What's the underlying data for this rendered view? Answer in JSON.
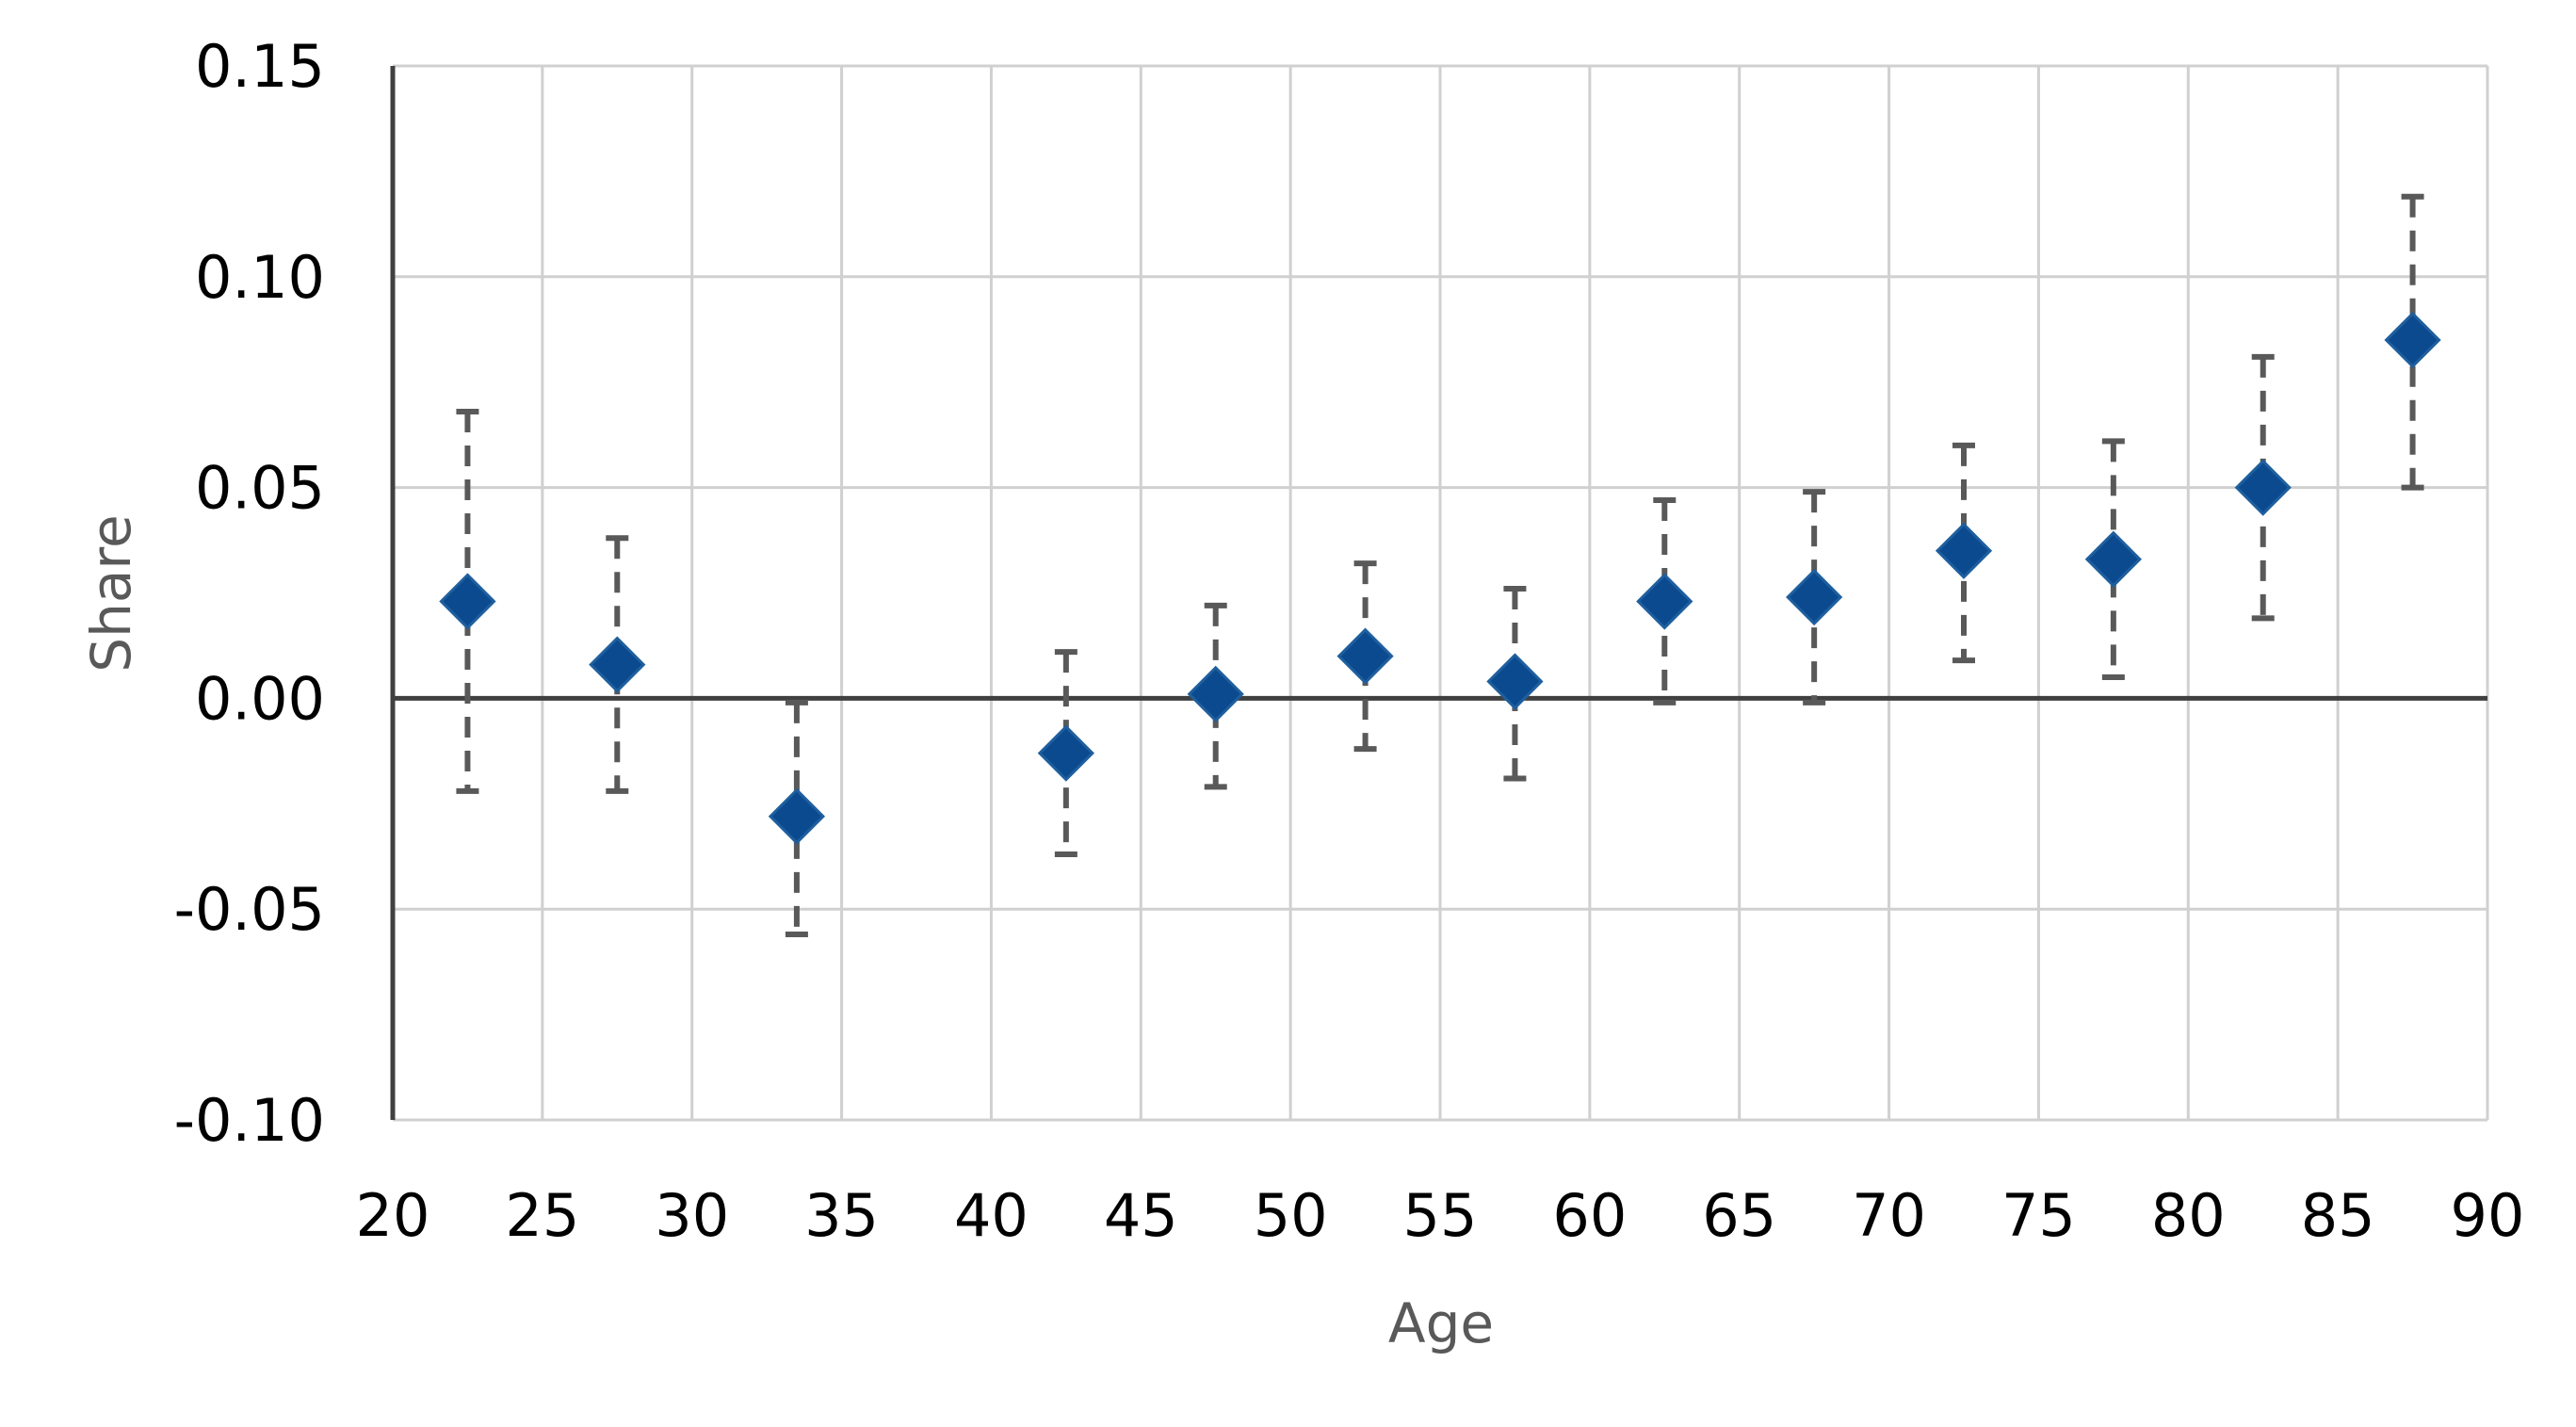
{
  "chart_data": {
    "type": "scatter",
    "title": "",
    "xlabel": "Age",
    "ylabel": "Share",
    "xlim": [
      20,
      90
    ],
    "ylim": [
      -0.1,
      0.15
    ],
    "x_ticks": [
      "20",
      "25",
      "30",
      "35",
      "40",
      "45",
      "50",
      "55",
      "60",
      "65",
      "70",
      "75",
      "80",
      "85",
      "90"
    ],
    "y_ticks": [
      "0.15",
      "0.10",
      "0.05",
      "0.00",
      "-0.05",
      "-0.10"
    ],
    "grid": true,
    "colors": {
      "marker": "#0b4a8f",
      "error_bar": "#595959",
      "grid": "#d0d0d0"
    },
    "series": [
      {
        "points": [
          {
            "x": 22.5,
            "y": 0.023,
            "low": -0.022,
            "high": 0.068
          },
          {
            "x": 27.5,
            "y": 0.008,
            "low": -0.022,
            "high": 0.038
          },
          {
            "x": 33.5,
            "y": -0.028,
            "low": -0.056,
            "high": -0.001
          },
          {
            "x": 42.5,
            "y": -0.013,
            "low": -0.037,
            "high": 0.011
          },
          {
            "x": 47.5,
            "y": 0.001,
            "low": -0.021,
            "high": 0.022
          },
          {
            "x": 52.5,
            "y": 0.01,
            "low": -0.012,
            "high": 0.032
          },
          {
            "x": 57.5,
            "y": 0.004,
            "low": -0.019,
            "high": 0.026
          },
          {
            "x": 62.5,
            "y": 0.023,
            "low": -0.001,
            "high": 0.047
          },
          {
            "x": 67.5,
            "y": 0.024,
            "low": -0.001,
            "high": 0.049
          },
          {
            "x": 72.5,
            "y": 0.035,
            "low": 0.009,
            "high": 0.06
          },
          {
            "x": 77.5,
            "y": 0.033,
            "low": 0.005,
            "high": 0.061
          },
          {
            "x": 82.5,
            "y": 0.05,
            "low": 0.019,
            "high": 0.081
          },
          {
            "x": 87.5,
            "y": 0.085,
            "low": 0.05,
            "high": 0.119
          }
        ]
      }
    ]
  }
}
